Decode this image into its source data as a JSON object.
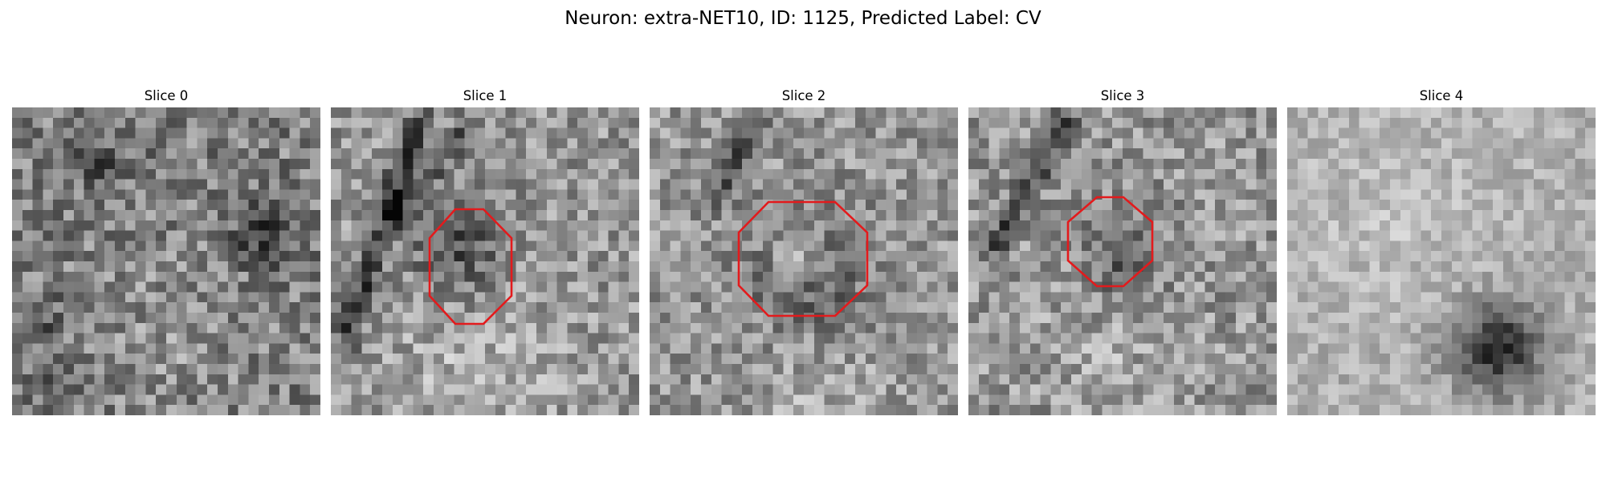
{
  "figure": {
    "title": "Neuron: extra-NET10, ID: 1125, Predicted Label: CV",
    "roi_color": "#e31a1c",
    "colormap": "gray"
  },
  "slices": [
    {
      "label": "Slice 0",
      "has_roi": false
    },
    {
      "label": "Slice 1",
      "has_roi": true
    },
    {
      "label": "Slice 2",
      "has_roi": true
    },
    {
      "label": "Slice 3",
      "has_roi": true
    },
    {
      "label": "Slice 4",
      "has_roi": false
    }
  ]
}
